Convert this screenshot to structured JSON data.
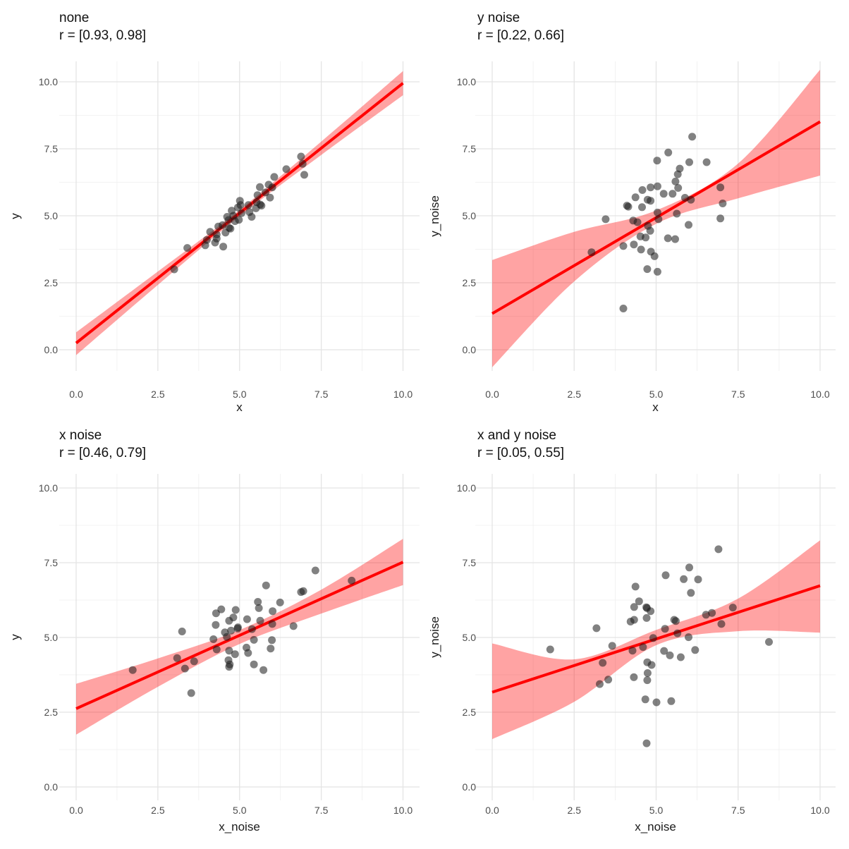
{
  "style": {
    "background": "#FFFFFF",
    "accent_red": "#FF0000",
    "band_opacity": 0.36,
    "point_color": "#1A1A1A",
    "point_opacity": 0.55,
    "grid_major": "#E4E4E4",
    "grid_minor": "#EFEFEF",
    "tick_text_color": "#4D4D4D",
    "text_color": "#1A1A1A"
  },
  "axis": {
    "lim": [
      0,
      10
    ],
    "ticks": [
      0,
      2.5,
      5,
      7.5,
      10
    ],
    "tick_labels": [
      "0.0",
      "2.5",
      "5.0",
      "7.5",
      "10.0"
    ],
    "minor_ticks": [
      1.25,
      3.75,
      6.25,
      8.75
    ]
  },
  "chart_data": [
    {
      "type": "scatter",
      "title": "none",
      "subtitle": "r = [0.93, 0.98]",
      "xlabel": "x",
      "ylabel": "y",
      "xlim": [
        0,
        10
      ],
      "ylim": [
        0,
        10
      ],
      "regression": {
        "x": [
          0,
          10
        ],
        "y": [
          0.25,
          9.95
        ]
      },
      "band": {
        "x": [
          0,
          2.5,
          5,
          7.5,
          10
        ],
        "low": [
          -0.2,
          2.42,
          4.98,
          7.27,
          9.5
        ],
        "high": [
          0.65,
          2.92,
          5.22,
          7.77,
          10.4
        ]
      },
      "points": [
        [
          3.0,
          3.0
        ],
        [
          3.4,
          3.8
        ],
        [
          3.95,
          3.9
        ],
        [
          4.0,
          4.1
        ],
        [
          4.1,
          4.4
        ],
        [
          4.25,
          4.0
        ],
        [
          4.3,
          4.15
        ],
        [
          4.3,
          4.3
        ],
        [
          4.35,
          4.6
        ],
        [
          4.48,
          4.65
        ],
        [
          4.5,
          3.85
        ],
        [
          4.57,
          4.37
        ],
        [
          4.62,
          4.96
        ],
        [
          4.66,
          4.84
        ],
        [
          4.68,
          4.55
        ],
        [
          4.72,
          4.52
        ],
        [
          4.76,
          5.19
        ],
        [
          4.81,
          5.0
        ],
        [
          4.86,
          4.8
        ],
        [
          4.95,
          5.31
        ],
        [
          4.98,
          4.85
        ],
        [
          5.01,
          5.56
        ],
        [
          5.03,
          5.4
        ],
        [
          5.06,
          5.1
        ],
        [
          5.27,
          5.4
        ],
        [
          5.3,
          5.14
        ],
        [
          5.37,
          4.96
        ],
        [
          5.5,
          5.28
        ],
        [
          5.52,
          5.51
        ],
        [
          5.55,
          5.77
        ],
        [
          5.63,
          5.42
        ],
        [
          5.67,
          5.38
        ],
        [
          5.62,
          6.07
        ],
        [
          5.79,
          5.87
        ],
        [
          5.89,
          6.16
        ],
        [
          5.93,
          5.68
        ],
        [
          6.0,
          6.06
        ],
        [
          6.06,
          6.45
        ],
        [
          6.43,
          6.74
        ],
        [
          6.88,
          7.21
        ],
        [
          6.93,
          6.94
        ],
        [
          6.98,
          6.53
        ]
      ]
    },
    {
      "type": "scatter",
      "title": "y noise",
      "subtitle": "r = [0.22, 0.66]",
      "xlabel": "x",
      "ylabel": "y_noise",
      "xlim": [
        0,
        10
      ],
      "ylim": [
        0,
        10
      ],
      "regression": {
        "x": [
          0,
          10
        ],
        "y": [
          1.35,
          8.51
        ]
      },
      "band": {
        "x": [
          0,
          2.5,
          5,
          7.5,
          10
        ],
        "low": [
          -0.65,
          2.55,
          4.7,
          5.65,
          6.5
        ],
        "high": [
          3.35,
          4.4,
          5.2,
          6.95,
          10.45
        ]
      },
      "points": [
        [
          6.1,
          7.95
        ],
        [
          5.37,
          7.36
        ],
        [
          5.03,
          7.06
        ],
        [
          6.01,
          7.0
        ],
        [
          6.54,
          7.0
        ],
        [
          5.72,
          6.76
        ],
        [
          5.66,
          6.55
        ],
        [
          5.59,
          6.28
        ],
        [
          4.83,
          6.06
        ],
        [
          5.04,
          6.1
        ],
        [
          6.96,
          6.06
        ],
        [
          4.58,
          5.96
        ],
        [
          5.67,
          6.04
        ],
        [
          5.23,
          5.82
        ],
        [
          5.5,
          5.82
        ],
        [
          4.37,
          5.69
        ],
        [
          4.74,
          5.6
        ],
        [
          4.83,
          5.56
        ],
        [
          5.88,
          5.67
        ],
        [
          6.06,
          5.6
        ],
        [
          4.11,
          5.38
        ],
        [
          4.15,
          5.34
        ],
        [
          4.57,
          5.32
        ],
        [
          7.03,
          5.46
        ],
        [
          5.04,
          5.12
        ],
        [
          5.07,
          4.87
        ],
        [
          5.63,
          5.08
        ],
        [
          3.46,
          4.87
        ],
        [
          4.3,
          4.82
        ],
        [
          4.43,
          4.76
        ],
        [
          6.96,
          4.9
        ],
        [
          4.75,
          4.62
        ],
        [
          4.82,
          4.44
        ],
        [
          4.52,
          4.23
        ],
        [
          4.68,
          4.19
        ],
        [
          5.36,
          4.16
        ],
        [
          5.58,
          4.13
        ],
        [
          5.99,
          4.66
        ],
        [
          4.0,
          3.87
        ],
        [
          4.32,
          3.93
        ],
        [
          3.03,
          3.64
        ],
        [
          4.54,
          3.74
        ],
        [
          4.84,
          3.66
        ],
        [
          4.95,
          3.49
        ],
        [
          4.73,
          3.01
        ],
        [
          5.04,
          2.91
        ],
        [
          4.0,
          1.54
        ]
      ]
    },
    {
      "type": "scatter",
      "title": "x noise",
      "subtitle": "r = [0.46, 0.79]",
      "xlabel": "x_noise",
      "ylabel": "y",
      "xlim": [
        0,
        10
      ],
      "ylim": [
        0,
        10
      ],
      "regression": {
        "x": [
          0,
          10
        ],
        "y": [
          2.62,
          7.52
        ]
      },
      "band": {
        "x": [
          0,
          2.5,
          5,
          7.5,
          10
        ],
        "low": [
          1.75,
          3.35,
          4.78,
          5.8,
          6.75
        ],
        "high": [
          3.45,
          4.3,
          5.25,
          6.6,
          8.3
        ]
      },
      "points": [
        [
          7.32,
          7.24
        ],
        [
          8.43,
          6.9
        ],
        [
          5.81,
          6.74
        ],
        [
          6.88,
          6.52
        ],
        [
          6.95,
          6.55
        ],
        [
          5.56,
          6.19
        ],
        [
          6.24,
          6.17
        ],
        [
          5.59,
          5.98
        ],
        [
          6.01,
          5.88
        ],
        [
          4.28,
          5.81
        ],
        [
          4.44,
          5.94
        ],
        [
          4.88,
          5.92
        ],
        [
          4.81,
          5.67
        ],
        [
          4.68,
          5.56
        ],
        [
          5.23,
          5.61
        ],
        [
          5.63,
          5.56
        ],
        [
          4.27,
          5.42
        ],
        [
          6.0,
          5.45
        ],
        [
          4.95,
          5.34
        ],
        [
          6.65,
          5.38
        ],
        [
          3.24,
          5.2
        ],
        [
          4.55,
          5.17
        ],
        [
          4.74,
          5.23
        ],
        [
          4.94,
          5.3
        ],
        [
          5.38,
          5.28
        ],
        [
          4.61,
          5.02
        ],
        [
          4.2,
          4.94
        ],
        [
          4.3,
          4.6
        ],
        [
          5.44,
          4.92
        ],
        [
          5.99,
          4.91
        ],
        [
          5.21,
          4.66
        ],
        [
          5.26,
          4.48
        ],
        [
          4.68,
          4.56
        ],
        [
          4.86,
          4.44
        ],
        [
          5.95,
          4.63
        ],
        [
          3.09,
          4.31
        ],
        [
          3.61,
          4.2
        ],
        [
          4.66,
          4.24
        ],
        [
          4.7,
          4.1
        ],
        [
          4.68,
          4.02
        ],
        [
          5.44,
          4.1
        ],
        [
          5.73,
          3.91
        ],
        [
          1.73,
          3.91
        ],
        [
          3.33,
          3.96
        ],
        [
          3.52,
          3.14
        ]
      ]
    },
    {
      "type": "scatter",
      "title": "x and y noise",
      "subtitle": "r = [0.05, 0.55]",
      "xlabel": "x_noise",
      "ylabel": "y_noise",
      "xlim": [
        0,
        10
      ],
      "ylim": [
        0,
        10
      ],
      "regression": {
        "x": [
          0,
          10
        ],
        "y": [
          3.17,
          6.73
        ]
      },
      "band": {
        "x": [
          0,
          2.5,
          5,
          7.5,
          10
        ],
        "low": [
          1.6,
          2.85,
          4.74,
          5.21,
          5.16
        ],
        "high": [
          4.8,
          4.27,
          5.25,
          6.3,
          8.25
        ]
      },
      "points": [
        [
          6.9,
          7.95
        ],
        [
          6.01,
          7.34
        ],
        [
          5.29,
          7.08
        ],
        [
          5.84,
          6.95
        ],
        [
          6.28,
          6.94
        ],
        [
          4.37,
          6.7
        ],
        [
          6.06,
          6.49
        ],
        [
          4.48,
          6.21
        ],
        [
          4.33,
          6.02
        ],
        [
          4.7,
          6.01
        ],
        [
          4.72,
          5.98
        ],
        [
          4.83,
          5.88
        ],
        [
          4.71,
          5.65
        ],
        [
          4.22,
          5.53
        ],
        [
          4.33,
          5.59
        ],
        [
          5.55,
          5.59
        ],
        [
          5.6,
          5.55
        ],
        [
          6.52,
          5.76
        ],
        [
          6.7,
          5.82
        ],
        [
          7.34,
          6.0
        ],
        [
          6.99,
          5.45
        ],
        [
          3.18,
          5.31
        ],
        [
          5.27,
          5.29
        ],
        [
          5.65,
          5.14
        ],
        [
          5.99,
          5.01
        ],
        [
          1.77,
          4.6
        ],
        [
          4.91,
          4.98
        ],
        [
          3.66,
          4.72
        ],
        [
          4.28,
          4.56
        ],
        [
          4.6,
          4.68
        ],
        [
          5.24,
          4.55
        ],
        [
          5.42,
          4.4
        ],
        [
          5.75,
          4.34
        ],
        [
          6.19,
          4.58
        ],
        [
          8.44,
          4.85
        ],
        [
          3.37,
          4.15
        ],
        [
          4.73,
          4.17
        ],
        [
          4.86,
          4.08
        ],
        [
          4.74,
          3.81
        ],
        [
          4.73,
          3.57
        ],
        [
          4.32,
          3.67
        ],
        [
          3.54,
          3.59
        ],
        [
          3.28,
          3.44
        ],
        [
          4.67,
          2.93
        ],
        [
          5.01,
          2.83
        ],
        [
          5.46,
          2.87
        ],
        [
          4.71,
          1.46
        ]
      ]
    }
  ]
}
